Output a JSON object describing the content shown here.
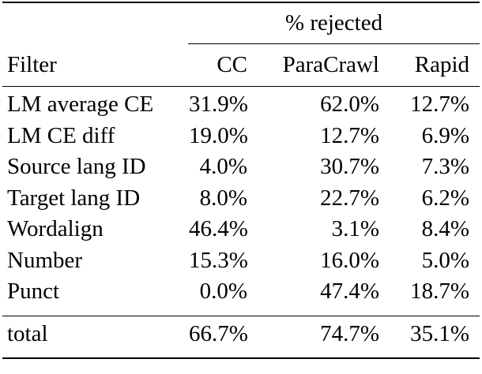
{
  "page": {
    "background": "#ffffff",
    "text_color": "#000000",
    "rule_color": "#000000"
  },
  "table": {
    "group_header": "% rejected",
    "filter_header": "Filter",
    "columns": [
      "CC",
      "ParaCrawl",
      "Rapid"
    ],
    "rows": [
      {
        "filter": "LM average CE",
        "values": [
          "31.9%",
          "62.0%",
          "12.7%"
        ]
      },
      {
        "filter": "LM CE diff",
        "values": [
          "19.0%",
          "12.7%",
          "6.9%"
        ]
      },
      {
        "filter": "Source lang ID",
        "values": [
          "4.0%",
          "30.7%",
          "7.3%"
        ]
      },
      {
        "filter": "Target lang ID",
        "values": [
          "8.0%",
          "22.7%",
          "6.2%"
        ]
      },
      {
        "filter": "Wordalign",
        "values": [
          "46.4%",
          "3.1%",
          "8.4%"
        ]
      },
      {
        "filter": "Number",
        "values": [
          "15.3%",
          "16.0%",
          "5.0%"
        ]
      },
      {
        "filter": "Punct",
        "values": [
          "0.0%",
          "47.4%",
          "18.7%"
        ]
      }
    ],
    "total": {
      "label": "total",
      "values": [
        "66.7%",
        "74.7%",
        "35.1%"
      ]
    }
  }
}
